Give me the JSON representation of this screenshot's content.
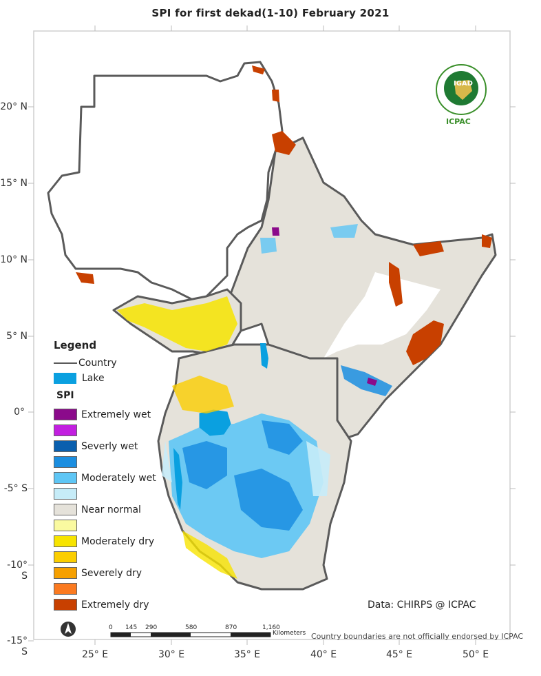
{
  "title": "SPI  for   first dekad(1-10) February 2021",
  "legend": {
    "heading": "Legend",
    "country_label": "Country",
    "lake_label": "Lake",
    "spi_heading": "SPI",
    "classes": [
      {
        "label": "Extremely wet",
        "color": "#8b0a8b"
      },
      {
        "label": "",
        "color": "#c21fe0"
      },
      {
        "label": "Severly wet",
        "color": "#0a5fae"
      },
      {
        "label": "",
        "color": "#1b8ee0"
      },
      {
        "label": "Moderately wet",
        "color": "#5ec6f5"
      },
      {
        "label": "",
        "color": "#c6ecf8"
      },
      {
        "label": "Near normal",
        "color": "#e5e2da"
      },
      {
        "label": "",
        "color": "#fafaa0"
      },
      {
        "label": "Moderately dry",
        "color": "#f7e400"
      },
      {
        "label": "",
        "color": "#fbce00"
      },
      {
        "label": "Severely dry",
        "color": "#f6a000"
      },
      {
        "label": "",
        "color": "#fb7a20"
      },
      {
        "label": "Extremely dry",
        "color": "#c84000"
      }
    ]
  },
  "axes": {
    "lat_labels": [
      "20° N",
      "15° N",
      "10° N",
      "5° N",
      "0°",
      "-5° S",
      "-10° S",
      "-15° S"
    ],
    "lon_labels": [
      "25° E",
      "30° E",
      "35° E",
      "40° E",
      "45° E",
      "50° E"
    ]
  },
  "scalebar": {
    "ticks": [
      "0",
      "145",
      "290",
      "580",
      "870",
      "1,160"
    ],
    "unit": "Kilometers"
  },
  "credit": "Data: CHIRPS @ ICPAC",
  "disclaimer": "Country boundaries are not officially endorsed by ICPAC",
  "logo": {
    "org": "IGAD",
    "label": "ICPAC"
  },
  "colors": {
    "frame": "#d2d2d2",
    "country_border": "#5a5a5a",
    "lake": "#0aa0e0",
    "near_normal": "#e5e2da"
  }
}
